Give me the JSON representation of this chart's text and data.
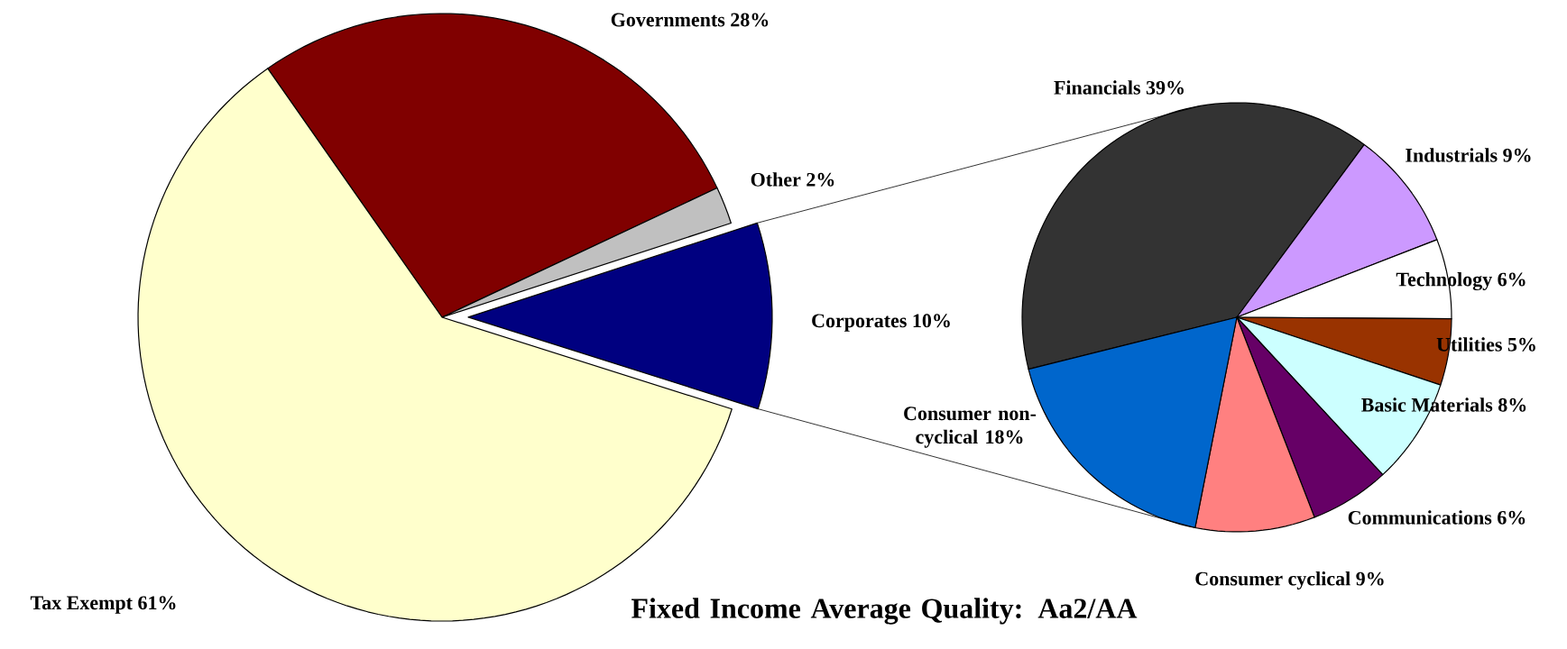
{
  "chart_data": [
    {
      "type": "pie",
      "categories": [
        "Governments",
        "Other",
        "Corporates",
        "Tax Exempt"
      ],
      "values": [
        28,
        2,
        10,
        61
      ],
      "value_labels": [
        "28%",
        "2%",
        "10%",
        "61%"
      ],
      "colors": [
        "#800000",
        "#c0c0c0",
        "#000080",
        "#ffffcc"
      ],
      "annotations": [
        "Fixed Income Average Quality: Aa2/AA"
      ]
    },
    {
      "type": "pie",
      "categories": [
        "Financials",
        "Industrials",
        "Technology",
        "Utilities",
        "Basic Materials",
        "Communications",
        "Consumer cyclical",
        "Consumer non-cyclical"
      ],
      "values": [
        39,
        9,
        6,
        5,
        8,
        6,
        9,
        18
      ],
      "value_labels": [
        "39%",
        "9%",
        "6%",
        "5%",
        "8%",
        "6%",
        "9%",
        "18%"
      ],
      "colors": [
        "#333333",
        "#cc99ff",
        "#ffffff",
        "#993300",
        "#ccffff",
        "#660066",
        "#ff8080",
        "#0066cc"
      ]
    }
  ]
}
